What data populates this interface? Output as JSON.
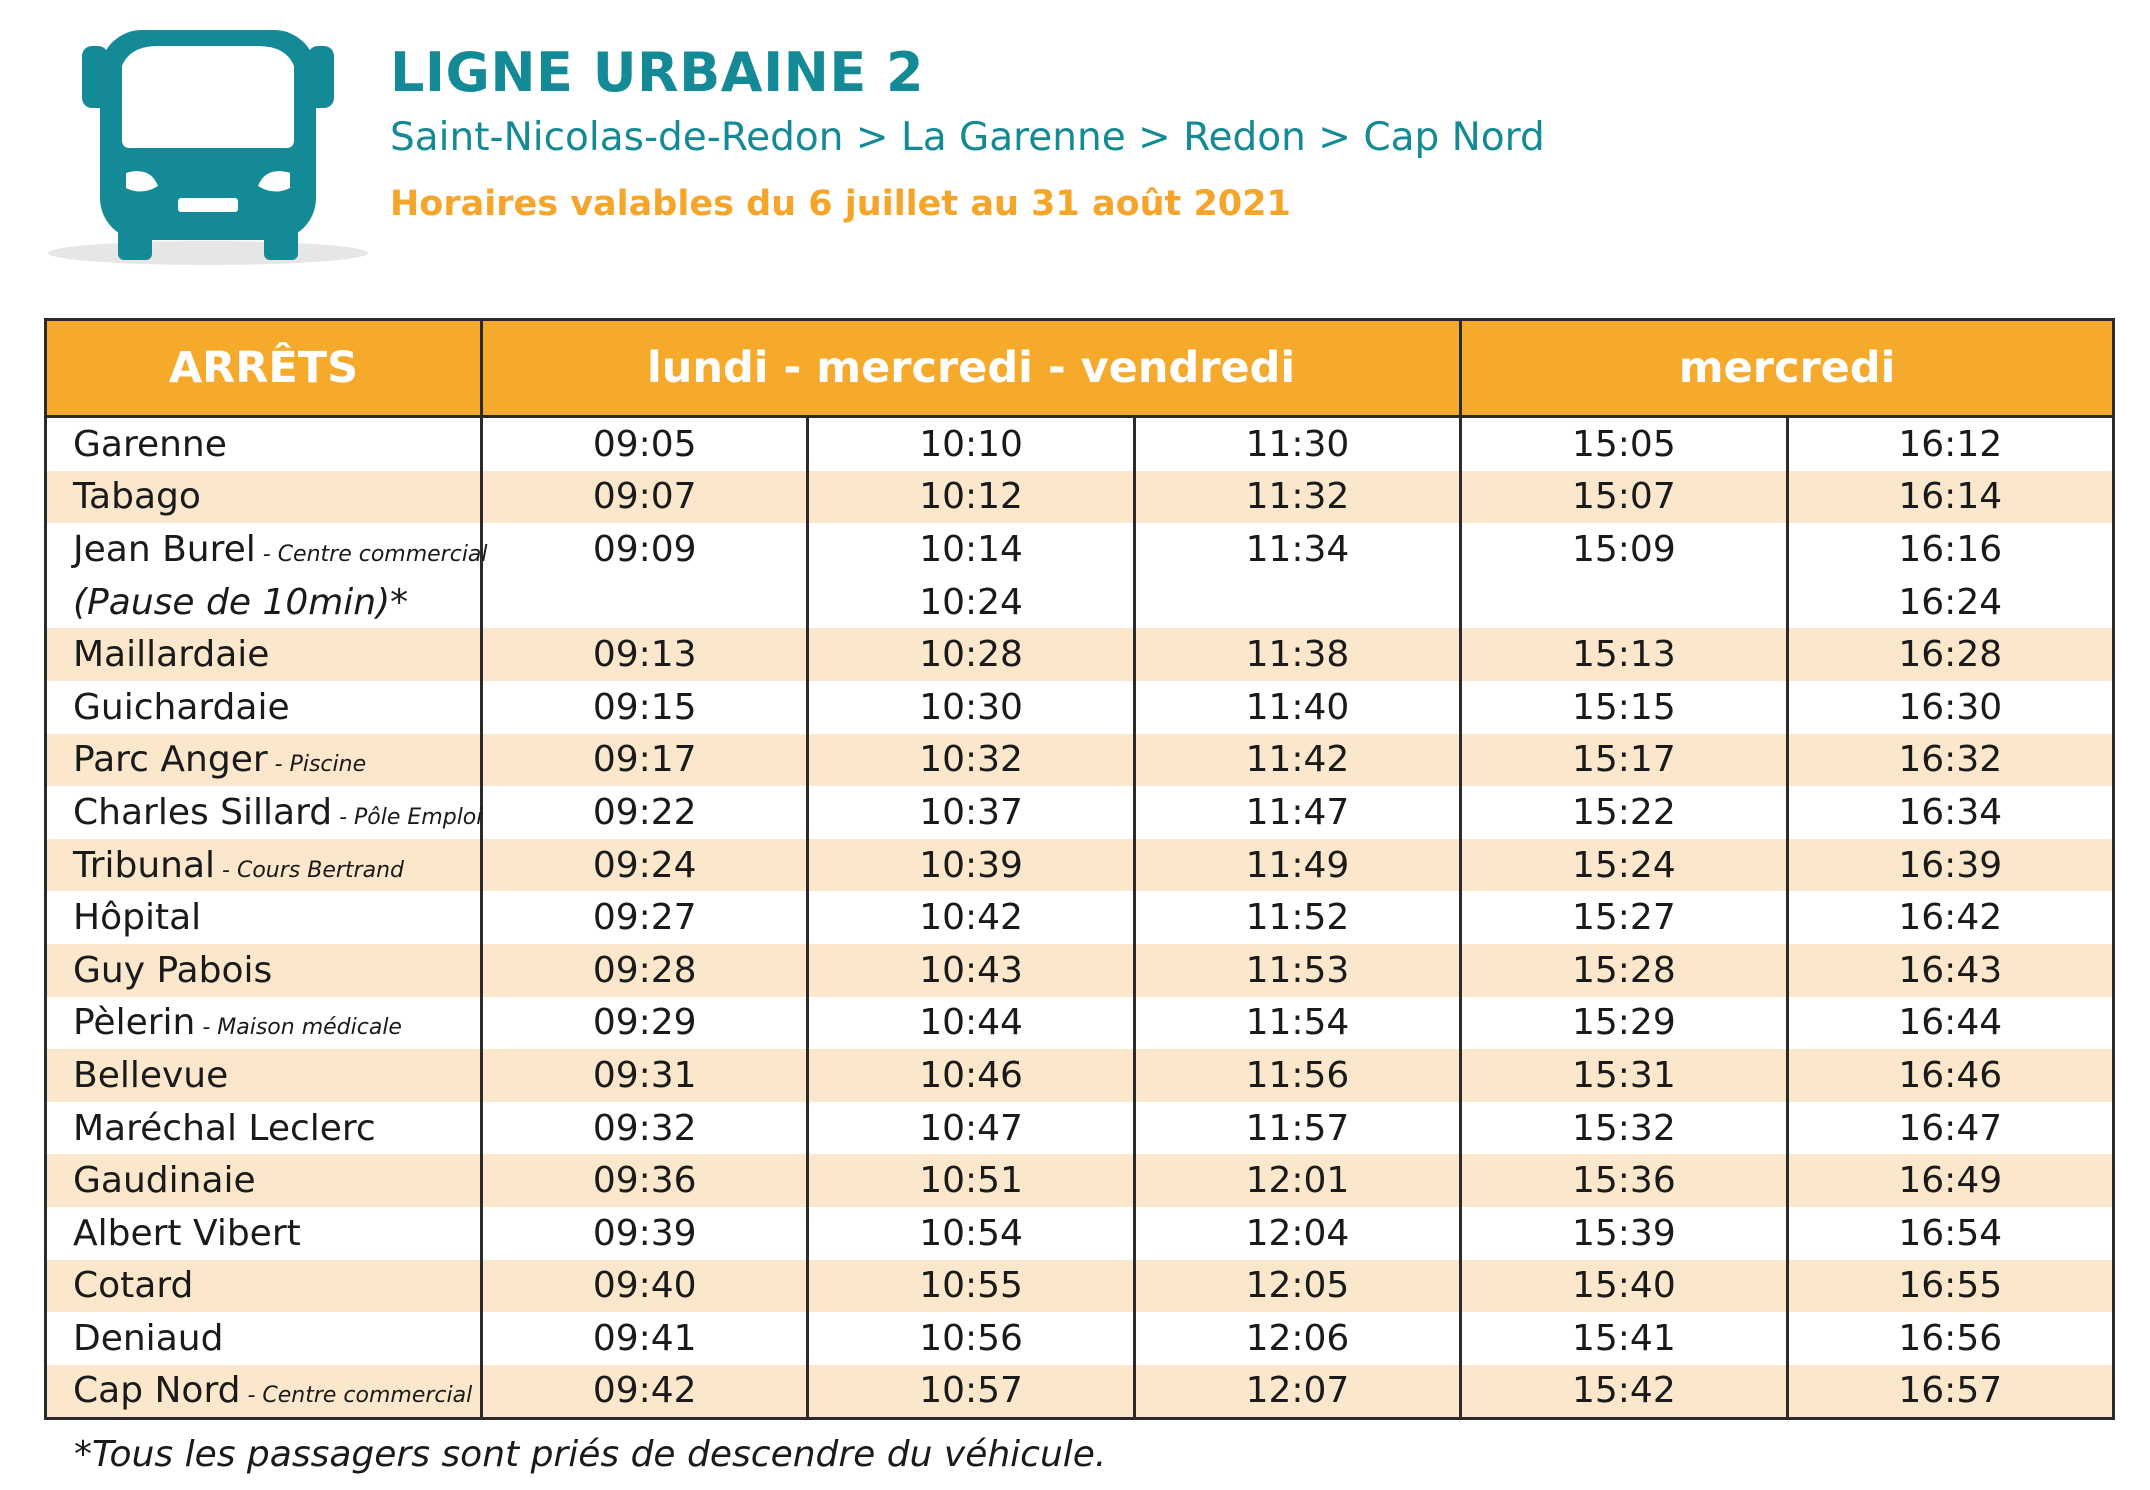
{
  "header": {
    "title": "LIGNE URBAINE 2",
    "route": "Saint-Nicolas-de-Redon > La Garenne > Redon > Cap Nord",
    "validity": "Horaires valables du 6 juillet au 31 août 2021"
  },
  "table": {
    "col_stops": "ARRÊTS",
    "col_group_1": "lundi - mercredi - vendredi",
    "col_group_2": "mercredi",
    "rows": [
      {
        "stop": "Garenne",
        "sub": "",
        "times": [
          "09:05",
          "10:10",
          "11:30",
          "15:05",
          "16:12"
        ]
      },
      {
        "stop": "Tabago",
        "sub": "",
        "times": [
          "09:07",
          "10:12",
          "11:32",
          "15:07",
          "16:14"
        ]
      },
      {
        "stop": "Jean Burel",
        "sub": " - Centre commercial",
        "times": [
          "09:09",
          "10:14",
          "11:34",
          "15:09",
          "16:16"
        ]
      },
      {
        "stop": "(Pause de 10min)*",
        "sub": "",
        "times": [
          "",
          "10:24",
          "",
          "",
          "16:24"
        ]
      },
      {
        "stop": "Maillardaie",
        "sub": "",
        "times": [
          "09:13",
          "10:28",
          "11:38",
          "15:13",
          "16:28"
        ]
      },
      {
        "stop": "Guichardaie",
        "sub": "",
        "times": [
          "09:15",
          "10:30",
          "11:40",
          "15:15",
          "16:30"
        ]
      },
      {
        "stop": "Parc Anger",
        "sub": " - Piscine",
        "times": [
          "09:17",
          "10:32",
          "11:42",
          "15:17",
          "16:32"
        ]
      },
      {
        "stop": "Charles Sillard",
        "sub": " - Pôle Emploi",
        "times": [
          "09:22",
          "10:37",
          "11:47",
          "15:22",
          "16:34"
        ]
      },
      {
        "stop": "Tribunal",
        "sub": " - Cours Bertrand",
        "times": [
          "09:24",
          "10:39",
          "11:49",
          "15:24",
          "16:39"
        ]
      },
      {
        "stop": "Hôpital",
        "sub": "",
        "times": [
          "09:27",
          "10:42",
          "11:52",
          "15:27",
          "16:42"
        ]
      },
      {
        "stop": "Guy Pabois",
        "sub": "",
        "times": [
          "09:28",
          "10:43",
          "11:53",
          "15:28",
          "16:43"
        ]
      },
      {
        "stop": "Pèlerin",
        "sub": " - Maison médicale",
        "times": [
          "09:29",
          "10:44",
          "11:54",
          "15:29",
          "16:44"
        ]
      },
      {
        "stop": "Bellevue",
        "sub": "",
        "times": [
          "09:31",
          "10:46",
          "11:56",
          "15:31",
          "16:46"
        ]
      },
      {
        "stop": "Maréchal Leclerc",
        "sub": "",
        "times": [
          "09:32",
          "10:47",
          "11:57",
          "15:32",
          "16:47"
        ]
      },
      {
        "stop": "Gaudinaie",
        "sub": "",
        "times": [
          "09:36",
          "10:51",
          "12:01",
          "15:36",
          "16:49"
        ]
      },
      {
        "stop": "Albert Vibert",
        "sub": "",
        "times": [
          "09:39",
          "10:54",
          "12:04",
          "15:39",
          "16:54"
        ]
      },
      {
        "stop": "Cotard",
        "sub": "",
        "times": [
          "09:40",
          "10:55",
          "12:05",
          "15:40",
          "16:55"
        ]
      },
      {
        "stop": "Deniaud",
        "sub": "",
        "times": [
          "09:41",
          "10:56",
          "12:06",
          "15:41",
          "16:56"
        ]
      },
      {
        "stop": "Cap Nord",
        "sub": " - Centre commercial",
        "times": [
          "09:42",
          "10:57",
          "12:07",
          "15:42",
          "16:57"
        ]
      }
    ]
  },
  "footnote": "*Tous les passagers sont priés de descendre du véhicule.",
  "colors": {
    "brand_teal": "#138a96",
    "accent_orange": "#f6aa2c",
    "row_shade": "#fbe7cb"
  },
  "icons": {
    "header_icon": "bus-icon"
  }
}
